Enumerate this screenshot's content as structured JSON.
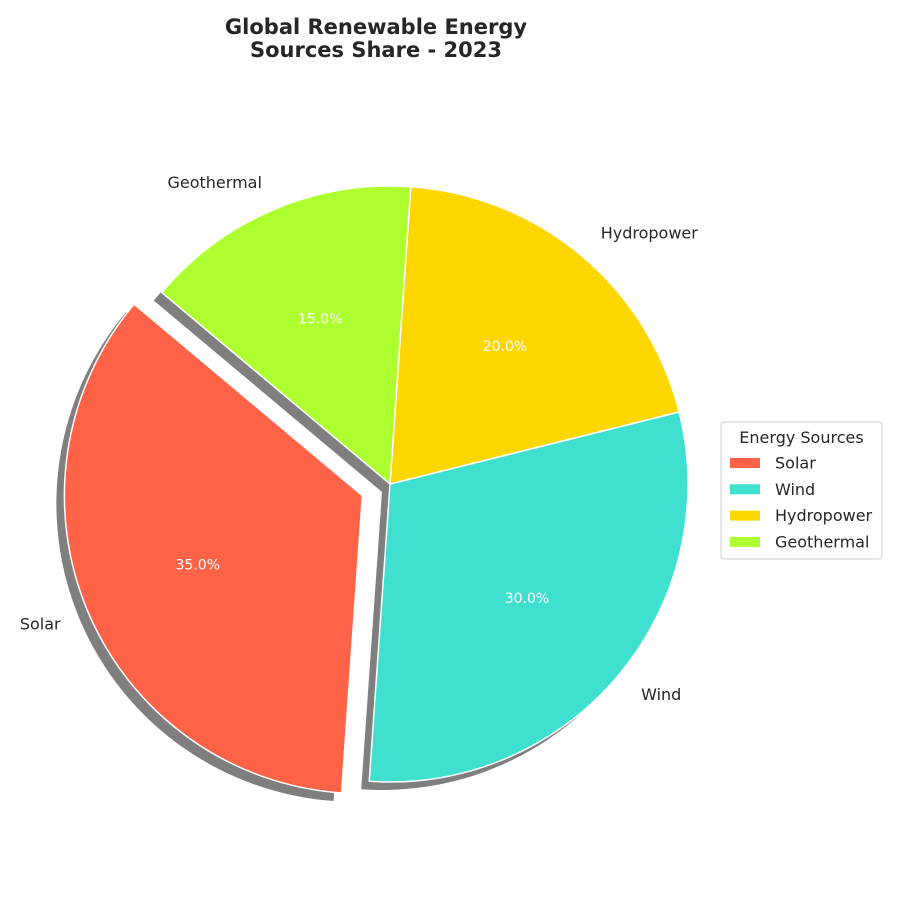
{
  "chart_data": {
    "type": "pie",
    "title": "Global Renewable Energy Sources Share - 2023",
    "title_lines": [
      "Global Renewable Energy",
      "Sources Share - 2023"
    ],
    "categories": [
      "Solar",
      "Wind",
      "Hydropower",
      "Geothermal"
    ],
    "values": [
      35.0,
      30.0,
      20.0,
      15.0
    ],
    "value_labels": [
      "35.0%",
      "30.0%",
      "20.0%",
      "15.0%"
    ],
    "colors": [
      "#FF6347",
      "#40E0D0",
      "#FFD700",
      "#ADFF2F"
    ],
    "exploded": [
      "Solar"
    ],
    "shadow": true,
    "legend": {
      "title": "Energy Sources",
      "placement": "right",
      "entries": [
        "Solar",
        "Wind",
        "Hydropower",
        "Geothermal"
      ]
    }
  }
}
